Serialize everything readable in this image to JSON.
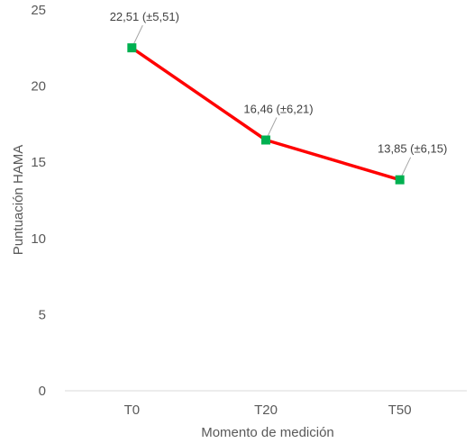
{
  "chart_data": {
    "type": "line",
    "categories": [
      "T0",
      "T20",
      "T50"
    ],
    "series": [
      {
        "values": [
          22.51,
          16.46,
          13.85
        ],
        "data_labels": [
          "22,51 (±5,51)",
          "16,46 (±6,21)",
          "13,85 (±6,15)"
        ]
      }
    ],
    "title": "",
    "xlabel": "Momento de medición",
    "ylabel": "Puntuación HAMA",
    "ylim": [
      0,
      25
    ],
    "yticks": [
      0,
      5,
      10,
      15,
      20,
      25
    ],
    "grid": false,
    "legend": "none",
    "colors": {
      "line": "#ff0000",
      "marker": "#00b050",
      "leader": "#a6a6a6",
      "axis": "#d9d9d9"
    }
  }
}
